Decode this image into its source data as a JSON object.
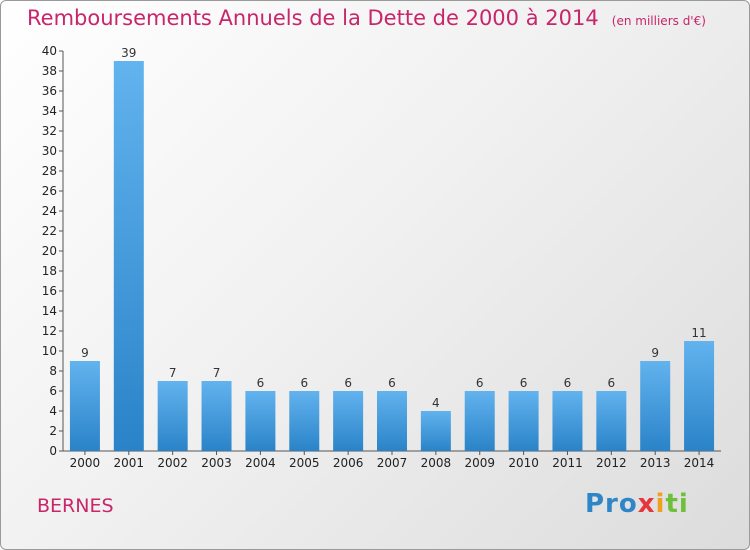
{
  "header": {
    "title": "Remboursements Annuels de la Dette de 2000 à 2014",
    "subtitle": "(en milliers d'€)"
  },
  "footer": {
    "commune": "BERNES",
    "logo_text": "Proxiti"
  },
  "colors": {
    "title": "#c8256a",
    "bar_light": "#62b3ee",
    "bar_dark": "#2a83c8"
  },
  "chart_data": {
    "type": "bar",
    "categories": [
      "2000",
      "2001",
      "2002",
      "2003",
      "2004",
      "2005",
      "2006",
      "2007",
      "2008",
      "2009",
      "2010",
      "2011",
      "2012",
      "2013",
      "2014"
    ],
    "values": [
      9,
      39,
      7,
      7,
      6,
      6,
      6,
      6,
      4,
      6,
      6,
      6,
      6,
      9,
      11
    ],
    "ylim": [
      0,
      40
    ],
    "yticks": [
      0,
      2,
      4,
      6,
      8,
      10,
      12,
      14,
      16,
      18,
      20,
      22,
      24,
      26,
      28,
      30,
      32,
      34,
      36,
      38,
      40
    ],
    "grid": false,
    "data_labels": true
  }
}
